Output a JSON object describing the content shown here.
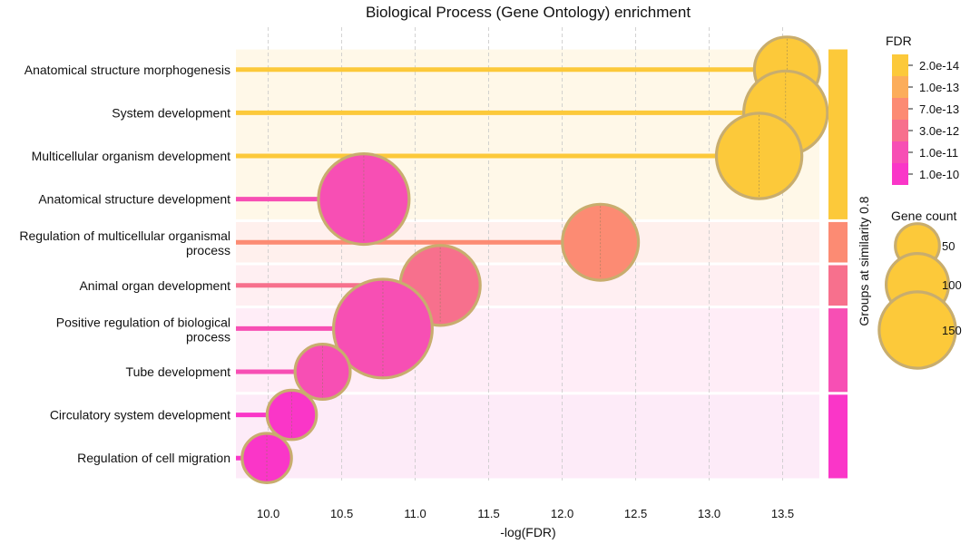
{
  "chart_data": {
    "type": "lollipop",
    "title": "Biological Process (Gene Ontology) enrichment",
    "xlabel": "-log(FDR)",
    "xlim": [
      9.78,
      13.75
    ],
    "xticks": [
      10.0,
      10.5,
      11.0,
      11.5,
      12.0,
      12.5,
      13.0,
      13.5
    ],
    "xtick_labels": [
      "10.0",
      "10.5",
      "11.0",
      "11.5",
      "12.0",
      "12.5",
      "13.0",
      "13.5"
    ],
    "grid": "vertical-dashed",
    "terms": [
      {
        "label": "Anatomical structure morphogenesis",
        "neglogfdr": 13.53,
        "gene_count": 70,
        "color": "#fcc93a",
        "group": 1
      },
      {
        "label": "System development",
        "neglogfdr": 13.52,
        "gene_count": 115,
        "color": "#fcc93a",
        "group": 1
      },
      {
        "label": "Multicellular organism development",
        "neglogfdr": 13.34,
        "gene_count": 120,
        "color": "#fcc93a",
        "group": 1
      },
      {
        "label": "Anatomical structure development",
        "neglogfdr": 10.65,
        "gene_count": 135,
        "color": "#f74fb4",
        "group": 1
      },
      {
        "label": "Regulation of multicellular organismal process",
        "neglogfdr": 12.26,
        "gene_count": 95,
        "color": "#fc8b73",
        "group": 2
      },
      {
        "label": "Animal organ development",
        "neglogfdr": 11.17,
        "gene_count": 105,
        "color": "#f7708d",
        "group": 3
      },
      {
        "label": "Positive regulation of biological process",
        "neglogfdr": 10.78,
        "gene_count": 160,
        "color": "#f74fb4",
        "group": 4
      },
      {
        "label": "Tube development",
        "neglogfdr": 10.37,
        "gene_count": 50,
        "color": "#f74fb4",
        "group": 4
      },
      {
        "label": "Circulatory system development",
        "neglogfdr": 10.16,
        "gene_count": 40,
        "color": "#fa36c8",
        "group": 5
      },
      {
        "label": "Regulation of cell migration",
        "neglogfdr": 9.99,
        "gene_count": 40,
        "color": "#fa36c8",
        "group": 5
      }
    ],
    "groups": [
      {
        "id": 1,
        "band_color": "#fff8e8",
        "bar_color": "#fcc93a"
      },
      {
        "id": 2,
        "band_color": "#fff0ed",
        "bar_color": "#fc8b73"
      },
      {
        "id": 3,
        "band_color": "#ffeff2",
        "bar_color": "#f7708d"
      },
      {
        "id": 4,
        "band_color": "#ffedf7",
        "bar_color": "#f74fb4"
      },
      {
        "id": 5,
        "band_color": "#fdebf8",
        "bar_color": "#fa36c8"
      }
    ],
    "group_axis_label": "Groups at similarity 0.8",
    "fdr_legend": {
      "title": "FDR",
      "entries": [
        {
          "label": "2.0e-14",
          "color": "#fcc93a"
        },
        {
          "label": "1.0e-13",
          "color": "#fcad5a"
        },
        {
          "label": "7.0e-13",
          "color": "#fc8b73"
        },
        {
          "label": "3.0e-12",
          "color": "#f7708d"
        },
        {
          "label": "1.0e-11",
          "color": "#f74fb4"
        },
        {
          "label": "1.0e-10",
          "color": "#fa36c8"
        }
      ]
    },
    "size_legend": {
      "title": "Gene count",
      "entries": [
        {
          "label": "50",
          "value": 50
        },
        {
          "label": "100",
          "value": 100
        },
        {
          "label": "150",
          "value": 150
        }
      ],
      "marker_color": "#fcc93a"
    },
    "marker_edge_color": "#c8ad6e"
  }
}
